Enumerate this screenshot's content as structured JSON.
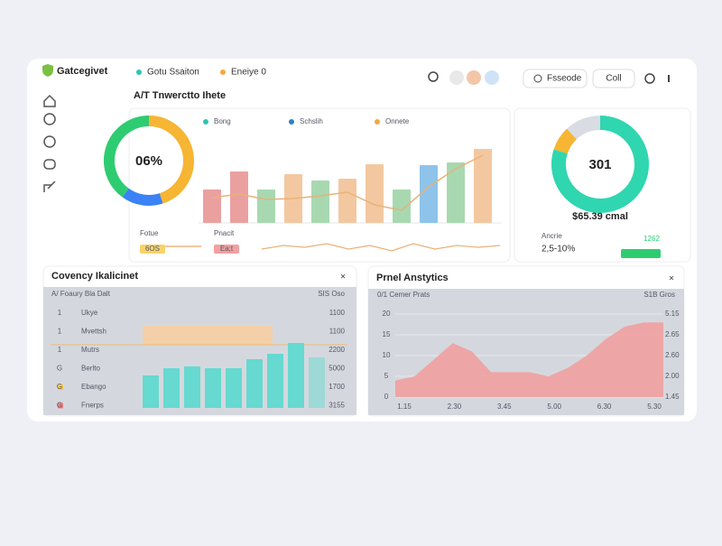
{
  "header": {
    "logo": "Gatcegivet",
    "nav": [
      "Gotu Ssaiton",
      "Eneiye 0"
    ],
    "buttons": [
      "Fsseode",
      "Coll"
    ]
  },
  "overview": {
    "title": "A/T Tnwerctto Ihete",
    "donut": {
      "label": "06%",
      "segments": [
        {
          "value": 45,
          "color": "#f6b533"
        },
        {
          "value": 15,
          "color": "#3b82f6"
        },
        {
          "value": 40,
          "color": "#2ecc71"
        }
      ]
    },
    "legend": [
      {
        "name": "Bong",
        "color": "#2ec4b6"
      },
      {
        "name": "Schslih",
        "color": "#2f80c9"
      },
      {
        "name": "Onnete",
        "color": "#f5a742"
      }
    ],
    "bars": [
      {
        "value": 37,
        "color": "#eba0a0"
      },
      {
        "value": 57,
        "color": "#eba0a0"
      },
      {
        "value": 37,
        "color": "#a8d8b0"
      },
      {
        "value": 54,
        "color": "#f3c8a0"
      },
      {
        "value": 47,
        "color": "#a8d8b0"
      },
      {
        "value": 49,
        "color": "#f3c8a0"
      },
      {
        "value": 65,
        "color": "#f3c8a0"
      },
      {
        "value": 37,
        "color": "#a8d8b0"
      },
      {
        "value": 64,
        "color": "#8ec3ea"
      },
      {
        "value": 67,
        "color": "#a8d8b0"
      },
      {
        "value": 82,
        "color": "#f3c8a0"
      }
    ],
    "line": [
      28,
      32,
      26,
      27,
      30,
      34,
      20,
      14,
      40,
      60,
      75
    ],
    "stats": [
      {
        "label": "Fotue",
        "badge": "6OS",
        "color": "#f8d36a"
      },
      {
        "label": "Pnacit",
        "badge": "Ea;t",
        "color": "#f3a0a0"
      }
    ],
    "sparkline": [
      3,
      5,
      4,
      6,
      3,
      5,
      2,
      6,
      3,
      5,
      4,
      5
    ]
  },
  "summary": {
    "donut": {
      "label": "301",
      "segments": [
        {
          "value": 80,
          "color": "#2fd6b0"
        },
        {
          "value": 8,
          "color": "#f6b533"
        },
        {
          "value": 12,
          "color": "#d9dde3"
        }
      ]
    },
    "amount": "$65.39 cmal",
    "label": "Ancrie",
    "change": "2,5-10%",
    "badge": "1262"
  },
  "table_panel": {
    "title": "Covency Ikalicinet",
    "header": [
      "A/ Foaury Bla Dalt",
      "SIS Oso"
    ],
    "rows": [
      [
        "1",
        "Ukye",
        "1100"
      ],
      [
        "1",
        "Mvettsh",
        "1100"
      ],
      [
        "1",
        "Mutrs",
        "2200"
      ],
      [
        "G",
        "Berlto",
        "5000"
      ],
      [
        "G",
        "Ebango",
        "1700"
      ],
      [
        "G",
        "Fnerps",
        "3155"
      ]
    ],
    "row_colors": [
      null,
      null,
      null,
      null,
      "#f6c945",
      "#f08080"
    ],
    "bars": [
      36,
      44,
      46,
      44,
      44,
      54,
      60,
      72,
      56
    ],
    "bar_color": "#66d9d0"
  },
  "analytics": {
    "title": "Prnel Anstytics",
    "header": [
      "0/1 Cemer Prats",
      "S1B Gros"
    ],
    "ylim": [
      0,
      20
    ],
    "yticks": [
      0,
      5,
      10,
      15,
      20
    ],
    "right_labels": [
      "5.15",
      "2.65",
      "2.60",
      "2.00",
      "1.45"
    ],
    "x_labels": [
      "1.15",
      "2.30",
      "3.45",
      "5.00",
      "6.30",
      "5.30"
    ],
    "values": [
      4,
      5,
      9,
      13,
      11,
      6,
      6,
      6,
      5,
      7,
      10,
      14,
      17,
      18,
      18
    ],
    "color": "#f0a0a0"
  }
}
